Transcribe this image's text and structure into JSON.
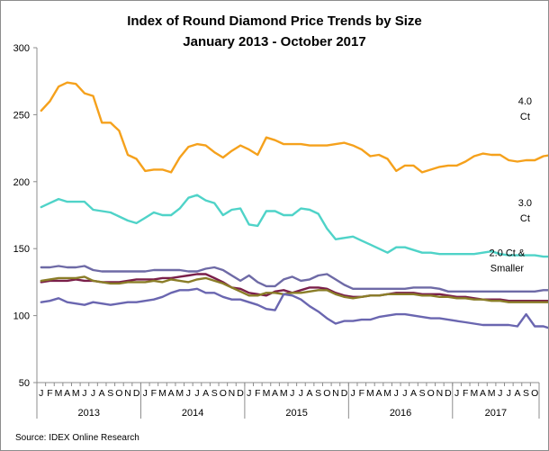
{
  "chart_data": {
    "type": "line",
    "title_lines": [
      "Index of Round Diamond Price Trends by Size",
      "January 2013 - October 2017"
    ],
    "source": "Source:  IDEX Online Research",
    "ylim": [
      50,
      300
    ],
    "y_ticks": [
      50,
      100,
      150,
      200,
      250,
      300
    ],
    "grid": false,
    "month_labels": [
      "J",
      "F",
      "M",
      "A",
      "M",
      "J",
      "J",
      "A",
      "S",
      "O",
      "N",
      "D",
      "J",
      "F",
      "M",
      "A",
      "M",
      "J",
      "J",
      "A",
      "S",
      "O",
      "N",
      "D",
      "J",
      "F",
      "M",
      "A",
      "M",
      "J",
      "J",
      "A",
      "S",
      "O",
      "N",
      "D",
      "J",
      "F",
      "M",
      "A",
      "M",
      "J",
      "J",
      "A",
      "S",
      "O",
      "N",
      "D",
      "J",
      "F",
      "M",
      "A",
      "M",
      "J",
      "J",
      "A",
      "S",
      "O"
    ],
    "years": [
      {
        "label": "2013",
        "start": 0,
        "count": 12
      },
      {
        "label": "2014",
        "start": 12,
        "count": 12
      },
      {
        "label": "2015",
        "start": 24,
        "count": 12
      },
      {
        "label": "2016",
        "start": 36,
        "count": 12
      },
      {
        "label": "2017",
        "start": 48,
        "count": 10
      }
    ],
    "annotations": [
      {
        "lines": [
          "4.0",
          "Ct"
        ],
        "series": "4.0 Ct"
      },
      {
        "lines": [
          "3.0",
          "Ct"
        ],
        "series": "3.0 Ct"
      },
      {
        "lines": [
          "2.0 Ct &",
          "Smaller"
        ],
        "series": "2.0 Ct & Smaller"
      }
    ],
    "series": [
      {
        "name": "4.0 Ct",
        "color": "#f5a11c",
        "values": [
          253,
          260,
          271,
          274,
          273,
          266,
          264,
          244,
          244,
          238,
          220,
          217,
          208,
          209,
          209,
          207,
          218,
          226,
          228,
          227,
          222,
          218,
          223,
          227,
          224,
          220,
          233,
          231,
          228,
          228,
          228,
          227,
          227,
          227,
          228,
          229,
          227,
          224,
          219,
          220,
          217,
          208,
          212,
          212,
          207,
          209,
          211,
          212,
          212,
          215,
          219,
          221,
          220,
          220,
          216,
          215,
          216,
          216,
          219,
          220
        ]
      },
      {
        "name": "3.0 Ct",
        "color": "#4fd3c8",
        "values": [
          181,
          184,
          187,
          185,
          185,
          185,
          179,
          178,
          177,
          174,
          171,
          169,
          173,
          177,
          175,
          175,
          180,
          188,
          190,
          186,
          184,
          175,
          179,
          180,
          168,
          167,
          178,
          178,
          175,
          175,
          180,
          179,
          176,
          165,
          157,
          158,
          159,
          156,
          153,
          150,
          147,
          151,
          151,
          149,
          147,
          147,
          146,
          146,
          146,
          146,
          146,
          147,
          148,
          146,
          145,
          145,
          145,
          145,
          144,
          144
        ]
      },
      {
        "name": "2.0 Ct & Smaller",
        "color": "#6e6aa6",
        "values": [
          136,
          136,
          137,
          136,
          136,
          137,
          134,
          133,
          133,
          133,
          133,
          133,
          133,
          134,
          134,
          134,
          134,
          133,
          133,
          135,
          136,
          134,
          130,
          126,
          130,
          125,
          122,
          122,
          127,
          129,
          126,
          127,
          130,
          131,
          127,
          123,
          120,
          120,
          120,
          120,
          120,
          120,
          120,
          121,
          121,
          121,
          120,
          118,
          118,
          118,
          118,
          118,
          118,
          118,
          118,
          118,
          118,
          118,
          119,
          119
        ]
      },
      {
        "name": "Purple",
        "color": "#7a1f4a",
        "values": [
          125,
          126,
          126,
          126,
          127,
          126,
          126,
          125,
          125,
          125,
          126,
          127,
          127,
          127,
          128,
          128,
          129,
          130,
          131,
          131,
          128,
          125,
          121,
          120,
          117,
          116,
          115,
          118,
          119,
          117,
          119,
          121,
          121,
          120,
          117,
          115,
          114,
          114,
          115,
          115,
          116,
          117,
          117,
          117,
          116,
          116,
          116,
          115,
          114,
          114,
          113,
          112,
          112,
          112,
          111,
          111,
          111,
          111,
          111,
          111
        ]
      },
      {
        "name": "Olive",
        "color": "#8a7d28",
        "values": [
          126,
          127,
          128,
          128,
          128,
          129,
          126,
          125,
          124,
          124,
          125,
          125,
          125,
          126,
          125,
          127,
          126,
          125,
          127,
          128,
          126,
          124,
          121,
          118,
          115,
          115,
          117,
          117,
          116,
          117,
          117,
          118,
          119,
          119,
          116,
          114,
          113,
          114,
          115,
          115,
          116,
          116,
          116,
          116,
          115,
          115,
          114,
          114,
          113,
          113,
          112,
          112,
          111,
          111,
          110,
          110,
          110,
          110,
          110,
          110
        ]
      },
      {
        "name": "Light Purple",
        "color": "#6a66b0",
        "values": [
          110,
          111,
          113,
          110,
          109,
          108,
          110,
          109,
          108,
          109,
          110,
          110,
          111,
          112,
          114,
          117,
          119,
          119,
          120,
          117,
          117,
          114,
          112,
          112,
          110,
          108,
          105,
          104,
          116,
          115,
          112,
          107,
          103,
          98,
          94,
          96,
          96,
          97,
          97,
          99,
          100,
          101,
          101,
          100,
          99,
          98,
          98,
          97,
          96,
          95,
          94,
          93,
          93,
          93,
          93,
          92,
          101,
          92,
          92,
          90
        ]
      }
    ]
  }
}
